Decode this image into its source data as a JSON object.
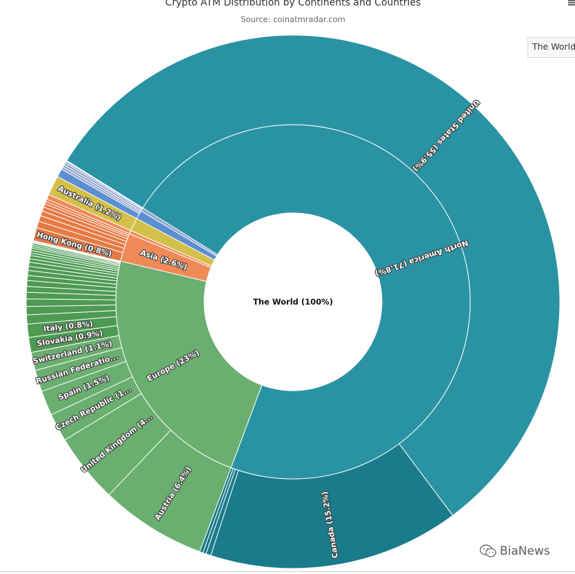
{
  "header": {
    "title": "Crypto ATM Distribution by Continents and Countries",
    "subtitle": "Source: coinatmradar.com"
  },
  "breadcrumb": {
    "label": "The World"
  },
  "watermark": {
    "text": "BiaNews"
  },
  "icons": {
    "menu": "hamburger-menu-icon",
    "watermark_logo": "wechat-icon"
  },
  "chart_data": {
    "type": "sunburst",
    "title": "Crypto ATM Distribution by Continents and Countries",
    "subtitle": "Source: coinatmradar.com",
    "root": {
      "label": "The World (100%)",
      "name": "The World",
      "value": 100
    },
    "colors": {
      "north_america": "#2a93a3",
      "canada": "#1a7b8a",
      "europe": "#6aaf70",
      "europe_country": "#4d9a52",
      "asia": "#ef8a58",
      "asia_country": "#e57a45",
      "oceania": "#d3c04a",
      "other_a": "#5c8fd1",
      "other_b": "#8ea2cc"
    },
    "continents": [
      {
        "name": "North America",
        "label": "North America (71.8%)",
        "value": 71.8,
        "color_key": "north_america",
        "countries": [
          {
            "name": "United States",
            "label": "United States (55.9%)",
            "value": 55.9,
            "color_key": "north_america"
          },
          {
            "name": "Canada",
            "label": "Canada (15.2%)",
            "value": 15.2,
            "color_key": "canada"
          },
          {
            "name": "",
            "label": "",
            "value": 0.3,
            "color_key": "canada"
          },
          {
            "name": "",
            "label": "",
            "value": 0.2,
            "color_key": "canada"
          },
          {
            "name": "",
            "label": "",
            "value": 0.2,
            "color_key": "canada"
          }
        ]
      },
      {
        "name": "Europe",
        "label": "Europe (23%)",
        "value": 23.0,
        "color_key": "europe",
        "countries": [
          {
            "name": "Austria",
            "label": "Austria (6.4%)",
            "value": 6.4,
            "color_key": "europe"
          },
          {
            "name": "United Kingdom",
            "label": "United Kingdom (4...",
            "value": 4.2,
            "color_key": "europe"
          },
          {
            "name": "Czech Republic",
            "label": "Czech Republic (1...",
            "value": 1.7,
            "color_key": "europe"
          },
          {
            "name": "Spain",
            "label": "Spain (1.5%)",
            "value": 1.5,
            "color_key": "europe"
          },
          {
            "name": "Russian Federation",
            "label": "Russian Federatio...",
            "value": 1.3,
            "color_key": "europe"
          },
          {
            "name": "Switzerland",
            "label": "Switzerland (1.1%)",
            "value": 1.1,
            "color_key": "europe"
          },
          {
            "name": "Slovakia",
            "label": "Slovakia (0.9%)",
            "value": 0.9,
            "color_key": "europe_country"
          },
          {
            "name": "Italy",
            "label": "Italy (0.8%)",
            "value": 0.8,
            "color_key": "europe_country"
          },
          {
            "name": "",
            "label": "",
            "value": 0.55,
            "color_key": "europe_country"
          },
          {
            "name": "",
            "label": "",
            "value": 0.5,
            "color_key": "europe_country"
          },
          {
            "name": "",
            "label": "",
            "value": 0.45,
            "color_key": "europe_country"
          },
          {
            "name": "",
            "label": "",
            "value": 0.4,
            "color_key": "europe_country"
          },
          {
            "name": "",
            "label": "",
            "value": 0.35,
            "color_key": "europe_country"
          },
          {
            "name": "",
            "label": "",
            "value": 0.35,
            "color_key": "europe_country"
          },
          {
            "name": "",
            "label": "",
            "value": 0.3,
            "color_key": "europe_country"
          },
          {
            "name": "",
            "label": "",
            "value": 0.3,
            "color_key": "europe_country"
          },
          {
            "name": "",
            "label": "",
            "value": 0.25,
            "color_key": "europe_country"
          },
          {
            "name": "",
            "label": "",
            "value": 0.25,
            "color_key": "europe_country"
          },
          {
            "name": "",
            "label": "",
            "value": 0.2,
            "color_key": "europe_country"
          },
          {
            "name": "",
            "label": "",
            "value": 0.2,
            "color_key": "europe_country"
          },
          {
            "name": "",
            "label": "",
            "value": 0.15,
            "color_key": "europe_country"
          },
          {
            "name": "",
            "label": "",
            "value": 0.15,
            "color_key": "europe_country"
          },
          {
            "name": "",
            "label": "",
            "value": 0.15,
            "color_key": "europe_country"
          },
          {
            "name": "",
            "label": "",
            "value": 0.1,
            "color_key": "europe_country"
          },
          {
            "name": "",
            "label": "",
            "value": 0.1,
            "color_key": "europe_country"
          },
          {
            "name": "",
            "label": "",
            "value": 0.1,
            "color_key": "europe_country"
          },
          {
            "name": "",
            "label": "",
            "value": 0.05,
            "color_key": "europe_country"
          },
          {
            "name": "",
            "label": "",
            "value": 0.05,
            "color_key": "europe_country"
          },
          {
            "name": "",
            "label": "",
            "value": 0.05,
            "color_key": "europe_country"
          }
        ]
      },
      {
        "name": "Asia",
        "label": "Asia (2.6%)",
        "value": 2.6,
        "color_key": "asia",
        "countries": [
          {
            "name": "Hong Kong",
            "label": "Hong Kong (0.8%)",
            "value": 0.8,
            "color_key": "asia_country"
          },
          {
            "name": "",
            "label": "",
            "value": 0.4,
            "color_key": "asia_country"
          },
          {
            "name": "",
            "label": "",
            "value": 0.35,
            "color_key": "asia_country"
          },
          {
            "name": "",
            "label": "",
            "value": 0.3,
            "color_key": "asia_country"
          },
          {
            "name": "",
            "label": "",
            "value": 0.25,
            "color_key": "asia_country"
          },
          {
            "name": "",
            "label": "",
            "value": 0.2,
            "color_key": "asia_country"
          },
          {
            "name": "",
            "label": "",
            "value": 0.15,
            "color_key": "asia_country"
          },
          {
            "name": "",
            "label": "",
            "value": 0.15,
            "color_key": "asia_country"
          }
        ]
      },
      {
        "name": "",
        "label": "",
        "value": 0.3,
        "color_key": "asia",
        "countries": [
          {
            "name": "",
            "label": "",
            "value": 0.3,
            "color_key": "asia"
          }
        ]
      },
      {
        "name": "",
        "label": "",
        "value": 1.2,
        "color_key": "oceania",
        "countries": [
          {
            "name": "Australia",
            "label": "Australia (1.2%)",
            "value": 1.2,
            "color_key": "oceania"
          }
        ]
      },
      {
        "name": "",
        "label": "",
        "value": 0.8,
        "color_key": "other_a",
        "countries": [
          {
            "name": "",
            "label": "",
            "value": 0.5,
            "color_key": "other_a"
          },
          {
            "name": "",
            "label": "",
            "value": 0.15,
            "color_key": "other_b"
          },
          {
            "name": "",
            "label": "",
            "value": 0.15,
            "color_key": "other_b"
          }
        ]
      },
      {
        "name": "",
        "label": "",
        "value": 0.3,
        "color_key": "other_b",
        "countries": [
          {
            "name": "",
            "label": "",
            "value": 0.15,
            "color_key": "other_b"
          },
          {
            "name": "",
            "label": "",
            "value": 0.1,
            "color_key": "other_b"
          },
          {
            "name": "",
            "label": "",
            "value": 0.05,
            "color_key": "other_b"
          }
        ]
      }
    ]
  }
}
